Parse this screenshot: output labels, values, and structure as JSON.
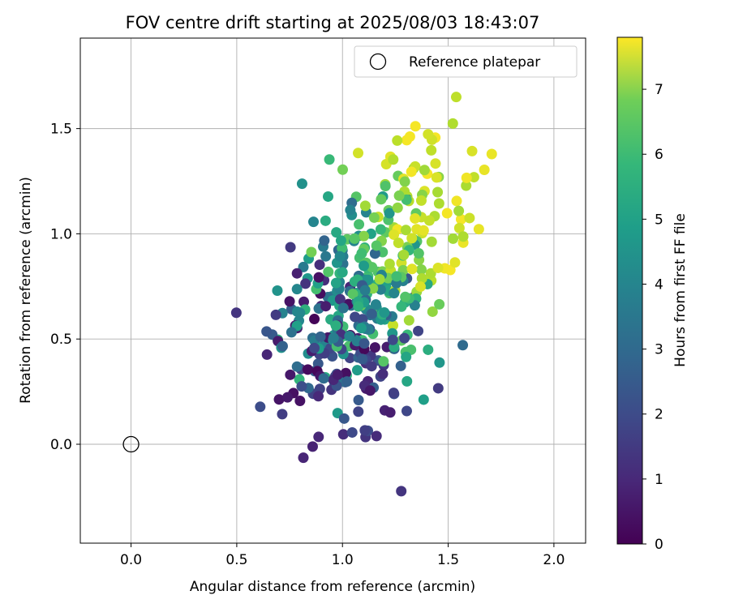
{
  "chart_data": {
    "type": "scatter",
    "title": "FOV centre drift starting at 2025/08/03 18:43:07",
    "xlabel": "Angular distance from reference (arcmin)",
    "ylabel": "Rotation from reference (arcmin)",
    "xlim": [
      -0.24,
      2.15
    ],
    "ylim": [
      -0.47,
      1.93
    ],
    "xticks": [
      "0.0",
      "0.5",
      "1.0",
      "1.5",
      "2.0"
    ],
    "yticks": [
      "0.0",
      "0.5",
      "1.0",
      "1.5"
    ],
    "xtick_values": [
      0,
      0.5,
      1.0,
      1.5,
      2.0
    ],
    "ytick_values": [
      0,
      0.5,
      1.0,
      1.5
    ],
    "grid": true,
    "legend": {
      "position": "top-right",
      "label": "Reference platepar"
    },
    "reference_point": {
      "x": 0,
      "y": 0
    },
    "colorbar": {
      "label": "Hours from first FF file",
      "colormap": "viridis",
      "range": [
        0,
        7.8
      ],
      "ticks": [
        "0",
        "1",
        "2",
        "3",
        "4",
        "5",
        "6",
        "7"
      ],
      "tick_values": [
        0,
        1,
        2,
        3,
        4,
        5,
        6,
        7
      ]
    },
    "point_count": 420,
    "points": []
  }
}
